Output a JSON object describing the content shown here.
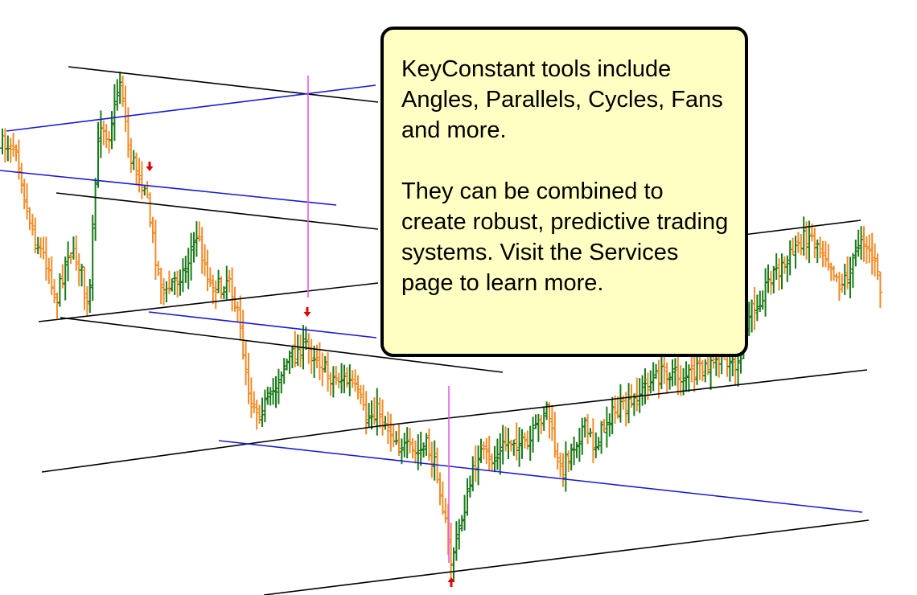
{
  "colors": {
    "background": "#ffffff",
    "up_bar": "#1a7a1a",
    "down_bar": "#f28c28",
    "trend_line": "#000000",
    "parallel_line": "#1a1ad6",
    "cycle_line": "#e85be8",
    "arrow_marker": "#e00000",
    "callout_fill": "#ffffc4",
    "callout_border": "#000000"
  },
  "callout": {
    "paragraph_1": "KeyConstant tools include Angles, Parallels, Cycles, Fans and more.",
    "paragraph_2": "They can be combined to create robust, predictive trading systems. Visit the Services page to learn more."
  },
  "chart_data": {
    "type": "bar",
    "bar_style": "ohlc",
    "grid": false,
    "axes_visible": false,
    "markers": [
      {
        "type": "arrow-down",
        "color": "arrow_marker"
      },
      {
        "type": "arrow-down",
        "color": "arrow_marker"
      },
      {
        "type": "arrow-up",
        "color": "arrow_marker"
      }
    ],
    "overlays": [
      {
        "tool": "angle",
        "color": "trend_line"
      },
      {
        "tool": "parallel",
        "color": "parallel_line"
      },
      {
        "tool": "cycle",
        "color": "cycle_line"
      }
    ]
  }
}
